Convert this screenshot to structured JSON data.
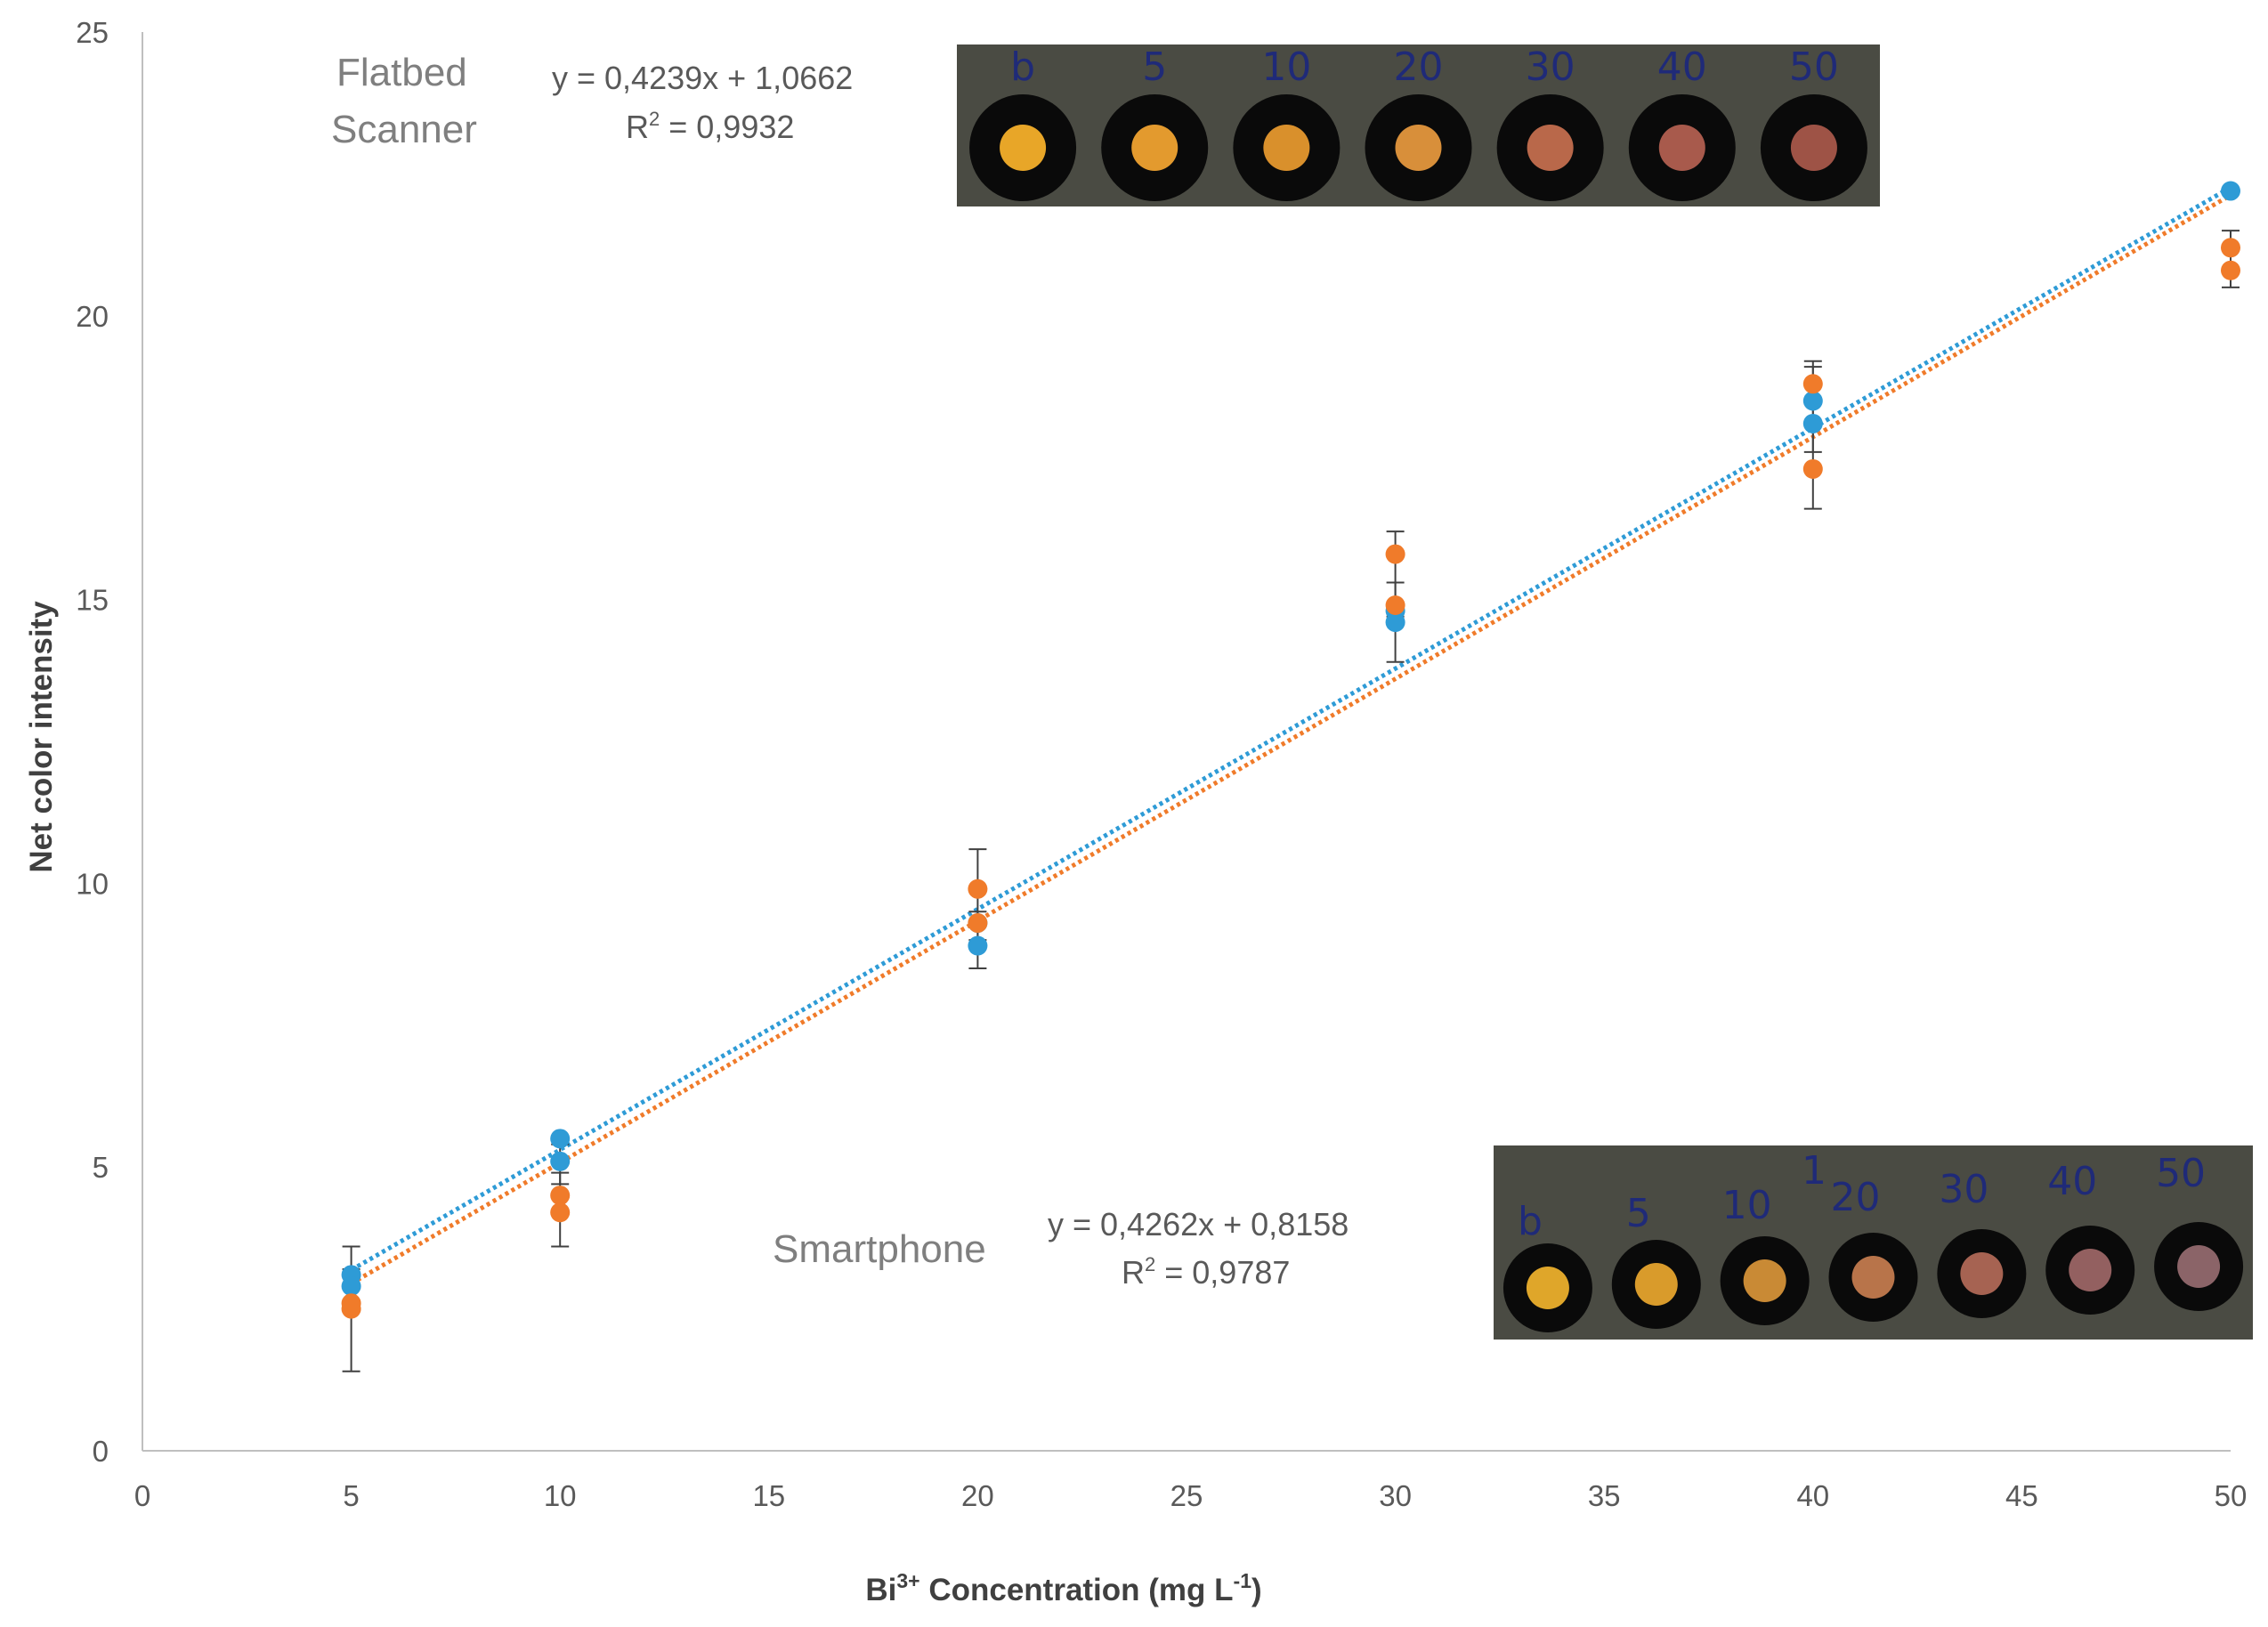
{
  "chart_data": {
    "type": "scatter",
    "title": "",
    "xlabel": {
      "prefix": "Bi",
      "superscript": "3+",
      "middle": " Concentration (mg L",
      "unit_superscript": "-1",
      "suffix": ")"
    },
    "ylabel": "Net color intensity",
    "xlim": [
      0,
      50
    ],
    "ylim": [
      0,
      25
    ],
    "x_ticks": [
      "0",
      "5",
      "10",
      "15",
      "20",
      "25",
      "30",
      "35",
      "40",
      "45",
      "50"
    ],
    "y_ticks": [
      "0",
      "5",
      "10",
      "15",
      "20",
      "25"
    ],
    "grid": false,
    "legend": "none",
    "series": [
      {
        "name": "Flatbed Scanner",
        "color": "#2e9bd6",
        "points": [
          {
            "x": 5,
            "y": 3.1
          },
          {
            "x": 5,
            "y": 2.9
          },
          {
            "x": 10,
            "y": 5.5
          },
          {
            "x": 10,
            "y": 5.1
          },
          {
            "x": 20,
            "y": 8.9
          },
          {
            "x": 20,
            "y": 9.3
          },
          {
            "x": 30,
            "y": 14.6
          },
          {
            "x": 30,
            "y": 14.8
          },
          {
            "x": 40,
            "y": 18.1
          },
          {
            "x": 40,
            "y": 18.5
          },
          {
            "x": 50,
            "y": 22.2
          }
        ],
        "error_bars": [
          {
            "x": 5,
            "low": 2.6,
            "high": 3.6
          },
          {
            "x": 10,
            "low": 4.7,
            "high": 5.4
          },
          {
            "x": 20,
            "low": 8.5,
            "high": 9.5
          },
          {
            "x": 30,
            "low": 13.9,
            "high": 15.3
          },
          {
            "x": 40,
            "low": 17.6,
            "high": 19.1
          }
        ],
        "trendline": {
          "slope": 0.4239,
          "intercept": 1.0662
        },
        "equation": "y = 0,4239x + 1,0662",
        "r2_label": "R",
        "r2_value": " = 0,9932"
      },
      {
        "name": "Smartphone",
        "color": "#f07b2a",
        "points": [
          {
            "x": 5,
            "y": 2.6
          },
          {
            "x": 5,
            "y": 2.5
          },
          {
            "x": 10,
            "y": 4.5
          },
          {
            "x": 10,
            "y": 4.2
          },
          {
            "x": 20,
            "y": 9.9
          },
          {
            "x": 20,
            "y": 9.3
          },
          {
            "x": 30,
            "y": 15.8
          },
          {
            "x": 30,
            "y": 14.9
          },
          {
            "x": 40,
            "y": 18.8
          },
          {
            "x": 40,
            "y": 17.3
          },
          {
            "x": 50,
            "y": 21.2
          },
          {
            "x": 50,
            "y": 20.8
          }
        ],
        "error_bars": [
          {
            "x": 5,
            "low": 1.4,
            "high": 3.2
          },
          {
            "x": 10,
            "low": 3.6,
            "high": 4.9
          },
          {
            "x": 20,
            "low": 9.0,
            "high": 10.6
          },
          {
            "x": 30,
            "low": 14.7,
            "high": 16.2
          },
          {
            "x": 40,
            "low": 16.6,
            "high": 19.2
          },
          {
            "x": 50,
            "low": 20.5,
            "high": 21.5
          }
        ],
        "trendline": {
          "slope": 0.4262,
          "intercept": 0.8158
        },
        "equation": "y = 0,4262x + 0,8158",
        "r2_label": "R",
        "r2_value": " = 0,9787"
      }
    ],
    "annotations": {
      "scanner_label_line1": "Flatbed",
      "scanner_label_line2": "Scanner",
      "smartphone_label": "Smartphone",
      "scanner_strip_labels": [
        "b",
        "5",
        "10",
        "20",
        "30",
        "40",
        "50"
      ],
      "smartphone_strip_labels": [
        "b",
        "5",
        "10",
        "20",
        "30",
        "40",
        "50"
      ],
      "strip_extra_mark": "1"
    },
    "colors": {
      "axis": "#bfbfbf",
      "error_bar": "#404040",
      "strip_background": "#4a4b43",
      "spot_ring": "#0a0a0a",
      "spot_colors": [
        "#e8a628",
        "#e39a2e",
        "#d9902c",
        "#d88f3a",
        "#b9684a",
        "#a85a4c",
        "#9e5346"
      ],
      "phone_spot_colors": [
        "#dfa62a",
        "#d99b2b",
        "#c98a35",
        "#b8744a",
        "#a66352",
        "#936060",
        "#8b6468"
      ]
    }
  }
}
